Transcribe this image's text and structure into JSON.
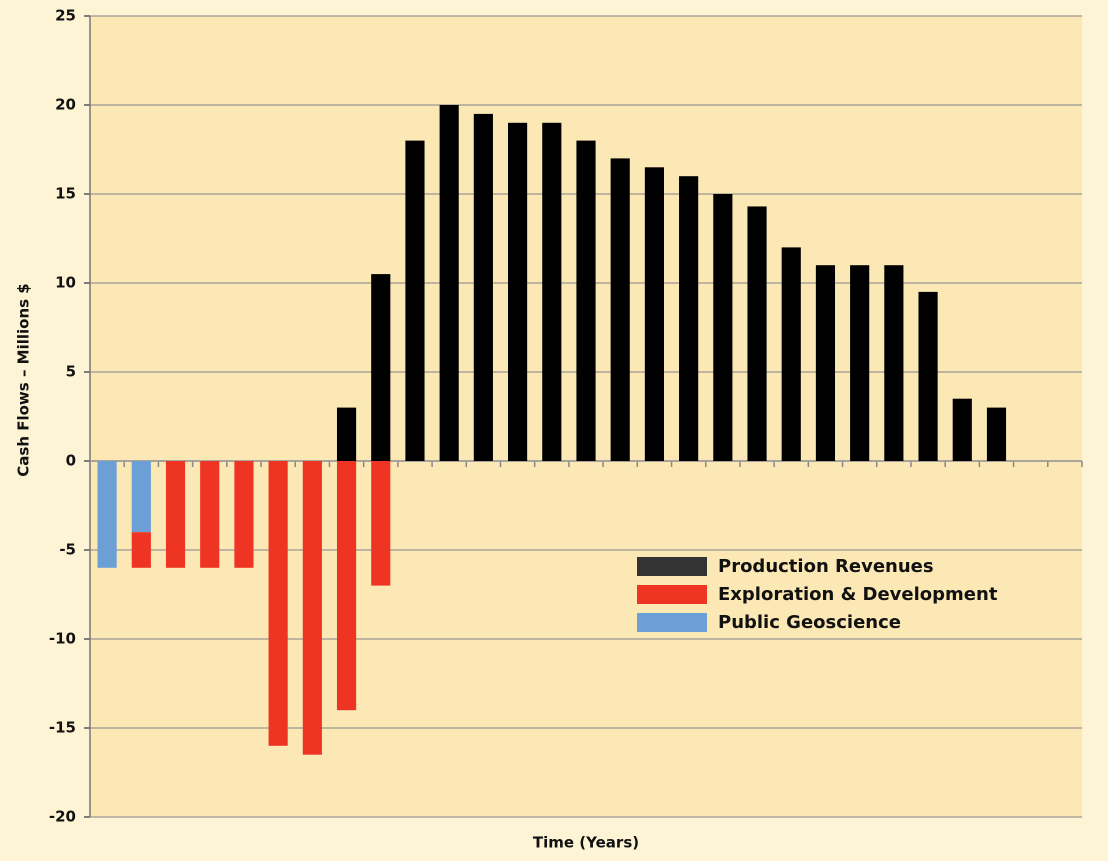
{
  "chart_data": {
    "type": "stacked_bar",
    "y_label": "Cash Flows – Millions $",
    "x_label": "Time (Years)",
    "categories": [
      null,
      null,
      null,
      null,
      null,
      null,
      null,
      null,
      null,
      null,
      null,
      null,
      null,
      null,
      null,
      null,
      null,
      null,
      null,
      null,
      null,
      null,
      null,
      null,
      null,
      null,
      null,
      null,
      null
    ],
    "series": [
      {
        "name": "Public Geoscience",
        "color": "#6b9fd6",
        "values": [
          -6,
          -4,
          null,
          null,
          null,
          null,
          null,
          null,
          null,
          null,
          null,
          null,
          null,
          null,
          null,
          null,
          null,
          null,
          null,
          null,
          null,
          null,
          null,
          null,
          null,
          null,
          null,
          null,
          null
        ]
      },
      {
        "name": "Exploration & Development",
        "color": "#ee3524",
        "values": [
          null,
          -2,
          -6,
          -6,
          -6,
          -16,
          -16.5,
          -14,
          -7,
          null,
          null,
          null,
          null,
          null,
          null,
          null,
          null,
          null,
          null,
          null,
          null,
          null,
          null,
          null,
          null,
          null,
          null,
          null,
          null
        ]
      },
      {
        "name": "Production Revenues",
        "color": "#000000",
        "values": [
          null,
          null,
          null,
          null,
          null,
          null,
          null,
          3,
          10.5,
          18,
          20,
          19.5,
          19,
          19,
          18,
          17,
          16.5,
          16,
          15,
          14.3,
          12,
          11,
          11,
          11,
          9.5,
          3.5,
          3,
          null,
          null
        ]
      }
    ],
    "legend_order": [
      2,
      1,
      0
    ],
    "legend": "center right",
    "ylim": [
      -20,
      25
    ],
    "yticks": [
      -20,
      -15,
      -10,
      -5,
      0,
      5,
      10,
      15,
      20,
      25
    ],
    "grid": true
  }
}
